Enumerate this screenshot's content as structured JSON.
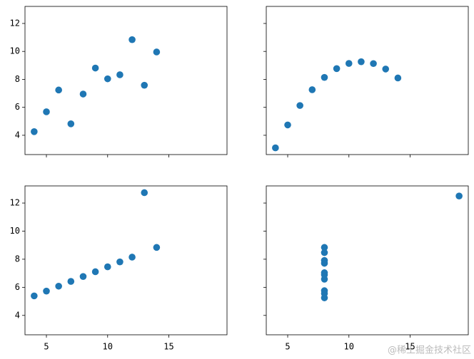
{
  "chart_data": [
    {
      "type": "scatter",
      "color": "#1f77b4",
      "xlim": [
        3.25,
        19.75
      ],
      "ylim": [
        2.62,
        13.22
      ],
      "xticks": [
        5,
        10,
        15
      ],
      "yticks": [
        4,
        6,
        8,
        10,
        12
      ],
      "x_tick_labels": false,
      "y_tick_labels": true,
      "x": [
        10,
        8,
        13,
        9,
        11,
        14,
        6,
        4,
        12,
        7,
        5
      ],
      "values": [
        8.04,
        6.95,
        7.58,
        8.81,
        8.33,
        9.96,
        7.24,
        4.26,
        10.84,
        4.82,
        5.68
      ]
    },
    {
      "type": "scatter",
      "color": "#1f77b4",
      "xlim": [
        3.25,
        19.75
      ],
      "ylim": [
        2.62,
        13.22
      ],
      "xticks": [
        5,
        10,
        15
      ],
      "yticks": [
        4,
        6,
        8,
        10,
        12
      ],
      "x_tick_labels": false,
      "y_tick_labels": false,
      "x": [
        10,
        8,
        13,
        9,
        11,
        14,
        6,
        4,
        12,
        7,
        5
      ],
      "values": [
        9.14,
        8.14,
        8.74,
        8.77,
        9.26,
        8.1,
        6.13,
        3.1,
        9.13,
        7.26,
        4.74
      ]
    },
    {
      "type": "scatter",
      "color": "#1f77b4",
      "xlim": [
        3.25,
        19.75
      ],
      "ylim": [
        2.62,
        13.22
      ],
      "xticks": [
        5,
        10,
        15
      ],
      "yticks": [
        4,
        6,
        8,
        10,
        12
      ],
      "x_tick_labels": true,
      "y_tick_labels": true,
      "x": [
        10,
        8,
        13,
        9,
        11,
        14,
        6,
        4,
        12,
        7,
        5
      ],
      "values": [
        7.46,
        6.77,
        12.74,
        7.11,
        7.81,
        8.84,
        6.08,
        5.39,
        8.15,
        6.42,
        5.73
      ]
    },
    {
      "type": "scatter",
      "color": "#1f77b4",
      "xlim": [
        3.25,
        19.75
      ],
      "ylim": [
        2.62,
        13.22
      ],
      "xticks": [
        5,
        10,
        15
      ],
      "yticks": [
        4,
        6,
        8,
        10,
        12
      ],
      "x_tick_labels": true,
      "y_tick_labels": false,
      "x": [
        8,
        8,
        8,
        8,
        8,
        8,
        8,
        19,
        8,
        8,
        8
      ],
      "values": [
        6.58,
        5.76,
        7.71,
        8.84,
        8.47,
        7.04,
        5.25,
        12.5,
        5.56,
        7.91,
        6.89
      ]
    }
  ],
  "watermark": "@稀土掘金技术社区"
}
